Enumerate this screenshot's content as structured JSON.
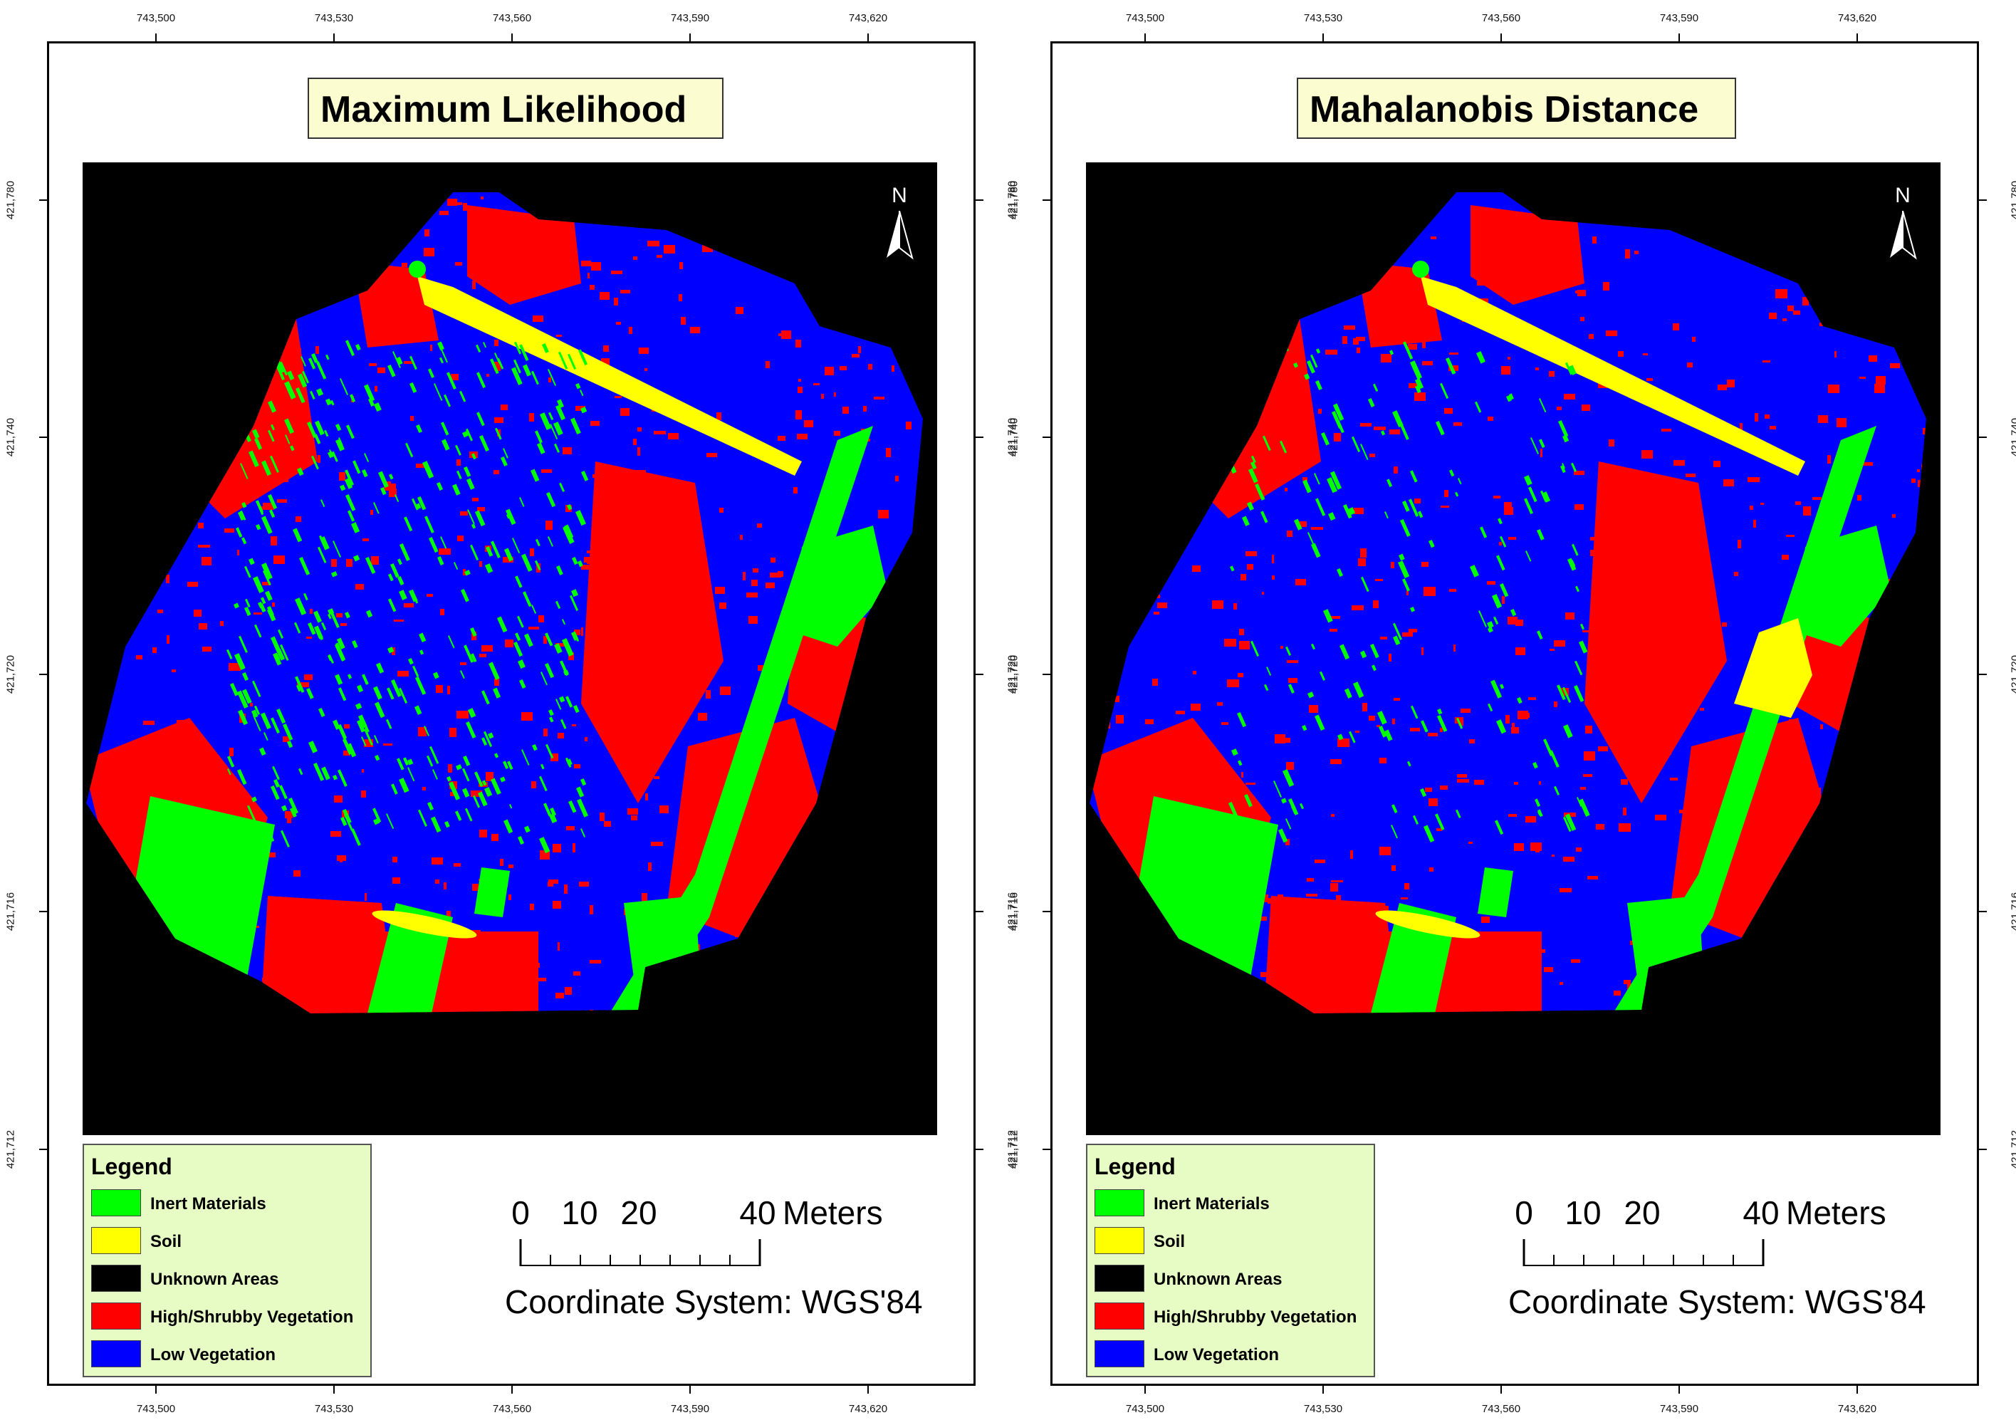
{
  "panels": [
    {
      "id": "left",
      "title": "Maximum Likelihood",
      "variant": "ml",
      "x_ticks": [
        "743,500",
        "743,530",
        "743,560",
        "743,590",
        "743,620"
      ],
      "y_ticks": [
        "421,780",
        "421,740",
        "421,720",
        "421,716",
        "421,712"
      ]
    },
    {
      "id": "right",
      "title": "Mahalanobis Distance",
      "variant": "md",
      "x_ticks": [
        "743,500",
        "743,530",
        "743,560",
        "743,590",
        "743,620"
      ],
      "y_ticks": [
        "421,780",
        "421,740",
        "421,720",
        "421,716",
        "421,712"
      ]
    }
  ],
  "north_label": "N",
  "legend": {
    "title": "Legend",
    "items": [
      {
        "label": "Inert Materials",
        "color": "#00ff00"
      },
      {
        "label": "Soil",
        "color": "#ffff00"
      },
      {
        "label": "Unknown Areas",
        "color": "#000000"
      },
      {
        "label": "High/Shrubby Vegetation",
        "color": "#ff0000"
      },
      {
        "label": "Low Vegetation",
        "color": "#0000ff"
      }
    ]
  },
  "scalebar": {
    "labels": [
      "0",
      "10",
      "20",
      "40"
    ],
    "unit": "Meters"
  },
  "coordinate_system": "Coordinate System: WGS'84",
  "colors": {
    "inert": "#00ff00",
    "soil": "#ffff00",
    "unknown": "#000000",
    "high_vegetation": "#ff0000",
    "low_vegetation": "#0000ff",
    "title_bg": "#fbfccf",
    "legend_bg": "#e6fcc4"
  }
}
